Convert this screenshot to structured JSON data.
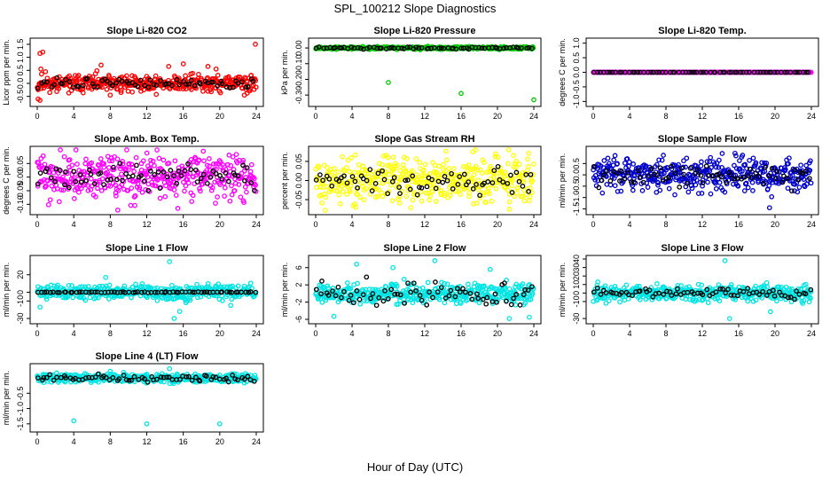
{
  "main_title": "SPL_100212  Slope Diagnostics",
  "x_axis_title": "Hour of Day (UTC)",
  "chart_data": [
    {
      "type": "scatter",
      "title": "Slope Li-820 CO2",
      "xlabel": "",
      "ylabel": "Licor ppm per min.",
      "xlim": [
        0,
        24
      ],
      "ylim": [
        -0.75,
        1.6
      ],
      "xticks": [
        "0",
        "4",
        "8",
        "12",
        "16",
        "20",
        "24"
      ],
      "yticks": [
        {
          "v": -0.5,
          "t": "-0.5"
        },
        {
          "v": 0,
          "t": "0.0"
        },
        {
          "v": 0.5,
          "t": "0.5"
        },
        {
          "v": 1,
          "t": "1.0"
        },
        {
          "v": 1.5,
          "t": "1.5"
        }
      ],
      "colors": {
        "main": "#ff0000",
        "hourly": "#000000"
      },
      "series": [
        {
          "color": "#ff0000",
          "center": 0.0,
          "spread": 0.16,
          "n": 420,
          "seed": 11
        },
        {
          "color": "#000000",
          "center": 0.0,
          "spread": 0.1,
          "n": 70,
          "seed": 12
        }
      ],
      "outliers": [
        {
          "x": 0.3,
          "y": 1.15
        },
        {
          "x": 0.6,
          "y": 1.2
        },
        {
          "x": 0.4,
          "y": 0.55
        },
        {
          "x": 0.9,
          "y": 0.45
        },
        {
          "x": 7.0,
          "y": 0.7
        },
        {
          "x": 14.4,
          "y": 0.65
        },
        {
          "x": 16.0,
          "y": 0.75
        },
        {
          "x": 18.7,
          "y": 0.65
        },
        {
          "x": 19.6,
          "y": 0.55
        },
        {
          "x": 23.9,
          "y": 1.5
        },
        {
          "x": 0.1,
          "y": -0.6
        },
        {
          "x": 0.3,
          "y": -0.65
        },
        {
          "x": 8.0,
          "y": -0.45
        },
        {
          "x": 18.7,
          "y": -0.3
        },
        {
          "x": 22.7,
          "y": -0.45
        }
      ]
    },
    {
      "type": "scatter",
      "title": "Slope Li-820 Pressure",
      "xlabel": "",
      "ylabel": "kPa per min.",
      "xlim": [
        0,
        24
      ],
      "ylim": [
        -0.35,
        0.04
      ],
      "xticks": [
        "0",
        "4",
        "8",
        "12",
        "16",
        "20",
        "24"
      ],
      "yticks": [
        {
          "v": 0,
          "t": "0.00"
        },
        {
          "v": -0.1,
          "t": "-0.10"
        },
        {
          "v": -0.2,
          "t": "-0.20"
        },
        {
          "v": -0.3,
          "t": "-0.30"
        }
      ],
      "colors": {
        "main": "#00cc00",
        "hourly": "#000000"
      },
      "series": [
        {
          "color": "#00cc00",
          "center": 0.0,
          "spread": 0.004,
          "n": 420,
          "seed": 21
        },
        {
          "color": "#000000",
          "center": 0.0,
          "spread": 0.003,
          "n": 70,
          "seed": 22
        }
      ],
      "outliers": [
        {
          "x": 8.0,
          "y": -0.22
        },
        {
          "x": 16.0,
          "y": -0.29
        },
        {
          "x": 24.0,
          "y": -0.33
        }
      ]
    },
    {
      "type": "scatter",
      "title": "Slope Li-820 Temp.",
      "xlabel": "",
      "ylabel": "degrees C per min.",
      "xlim": [
        0,
        24
      ],
      "ylim": [
        -1.05,
        1.05
      ],
      "xticks": [
        "0",
        "4",
        "8",
        "12",
        "16",
        "20",
        "24"
      ],
      "yticks": [
        {
          "v": -1,
          "t": "-1.0"
        },
        {
          "v": -0.5,
          "t": "-0.5"
        },
        {
          "v": 0,
          "t": "0.0"
        },
        {
          "v": 0.5,
          "t": "0.5"
        },
        {
          "v": 1,
          "t": "1.0"
        }
      ],
      "colors": {
        "main": "#ff00ff",
        "hourly": "#000000"
      },
      "series": [
        {
          "color": "#ff00ff",
          "center": 0.0,
          "spread": 0.0,
          "n": 420,
          "seed": 31
        },
        {
          "color": "#000000",
          "center": 0.0,
          "spread": 0.0,
          "n": 70,
          "seed": 32
        }
      ],
      "outliers": []
    },
    {
      "type": "scatter",
      "title": "Slope Amb. Box Temp.",
      "xlabel": "",
      "ylabel": "degrees C per min.",
      "xlim": [
        0,
        24
      ],
      "ylim": [
        -0.125,
        0.1
      ],
      "xticks": [
        "0",
        "4",
        "8",
        "12",
        "16",
        "20",
        "24"
      ],
      "yticks": [
        {
          "v": -0.1,
          "t": "-0.10"
        },
        {
          "v": -0.05,
          "t": "-0.05"
        },
        {
          "v": 0,
          "t": "0.00"
        },
        {
          "v": 0.05,
          "t": "0.05"
        }
      ],
      "colors": {
        "main": "#ff00ff",
        "hourly": "#000000"
      },
      "series": [
        {
          "color": "#ff00ff",
          "center": 0.0,
          "spread": 0.04,
          "n": 420,
          "seed": 41
        },
        {
          "color": "#000000",
          "center": 0.0,
          "spread": 0.02,
          "n": 70,
          "seed": 42
        }
      ],
      "outliers": [
        {
          "x": 15.4,
          "y": -0.115
        },
        {
          "x": 18.2,
          "y": 0.095
        }
      ]
    },
    {
      "type": "scatter",
      "title": "Slope Gas Stream RH",
      "xlabel": "",
      "ylabel": "percent per min.",
      "xlim": [
        0,
        24
      ],
      "ylim": [
        -0.08,
        0.08
      ],
      "xticks": [
        "0",
        "4",
        "8",
        "12",
        "16",
        "20",
        "24"
      ],
      "yticks": [
        {
          "v": -0.05,
          "t": "-0.05"
        },
        {
          "v": 0,
          "t": "0.00"
        },
        {
          "v": 0.05,
          "t": "0.05"
        }
      ],
      "colors": {
        "main": "#ffff00",
        "hourly": "#000000"
      },
      "series": [
        {
          "color": "#ffff00",
          "center": 0.0,
          "spread": 0.03,
          "n": 420,
          "seed": 51
        },
        {
          "color": "#000000",
          "center": 0.0,
          "spread": 0.015,
          "n": 70,
          "seed": 52
        }
      ],
      "outliers": [
        {
          "x": 4.4,
          "y": -0.07
        },
        {
          "x": 17.3,
          "y": 0.075
        },
        {
          "x": 21.3,
          "y": -0.075
        }
      ]
    },
    {
      "type": "scatter",
      "title": "Slope Sample Flow",
      "xlabel": "",
      "ylabel": "ml/min per min.",
      "xlim": [
        0,
        24
      ],
      "ylim": [
        -1.6,
        1.1
      ],
      "xticks": [
        "0",
        "4",
        "8",
        "12",
        "16",
        "20",
        "24"
      ],
      "yticks": [
        {
          "v": -1.5,
          "t": "-1.5"
        },
        {
          "v": -1,
          "t": "-1.0"
        },
        {
          "v": -0.5,
          "t": "-0.5"
        },
        {
          "v": 0,
          "t": "0.0"
        },
        {
          "v": 0.5,
          "t": "0.5"
        }
      ],
      "colors": {
        "main": "#0000cc",
        "hourly": "#000000"
      },
      "series": [
        {
          "color": "#0000cc",
          "center": 0.0,
          "spread": 0.35,
          "n": 420,
          "seed": 61
        },
        {
          "color": "#000000",
          "center": 0.0,
          "spread": 0.25,
          "n": 70,
          "seed": 62
        }
      ],
      "outliers": [
        {
          "x": 19.4,
          "y": -1.45
        },
        {
          "x": 1.0,
          "y": -0.8
        },
        {
          "x": 2.4,
          "y": 0.85
        },
        {
          "x": 15.6,
          "y": 0.95
        }
      ]
    },
    {
      "type": "scatter",
      "title": "Slope Line 1 Flow",
      "xlabel": "",
      "ylabel": "ml/min per min.",
      "xlim": [
        0,
        24
      ],
      "ylim": [
        -32,
        38
      ],
      "xticks": [
        "0",
        "4",
        "8",
        "12",
        "16",
        "20",
        "24"
      ],
      "yticks": [
        {
          "v": -30,
          "t": "-30"
        },
        {
          "v": -10,
          "t": "-10"
        },
        {
          "v": 0,
          "t": "0"
        },
        {
          "v": 20,
          "t": "20"
        }
      ],
      "colors": {
        "main": "#00e5e5",
        "hourly": "#000000"
      },
      "series": [
        {
          "color": "#00e5e5",
          "center": 0.0,
          "spread": 4,
          "n": 420,
          "seed": 71
        },
        {
          "color": "#000000",
          "center": 0.0,
          "spread": 0.3,
          "n": 70,
          "seed": 72
        }
      ],
      "outliers": [
        {
          "x": 14.5,
          "y": 35
        },
        {
          "x": 15.0,
          "y": -30
        },
        {
          "x": 15.6,
          "y": -22
        },
        {
          "x": 16.3,
          "y": -12
        },
        {
          "x": 0.3,
          "y": -17
        },
        {
          "x": 21.2,
          "y": -15
        },
        {
          "x": 7.5,
          "y": 17
        }
      ]
    },
    {
      "type": "scatter",
      "title": "Slope Line 2 Flow",
      "xlabel": "",
      "ylabel": "ml/min per min.",
      "xlim": [
        0,
        24
      ],
      "ylim": [
        -6.2,
        8
      ],
      "xticks": [
        "0",
        "4",
        "8",
        "12",
        "16",
        "20",
        "24"
      ],
      "yticks": [
        {
          "v": -6,
          "t": "-6"
        },
        {
          "v": -2,
          "t": "-2"
        },
        {
          "v": 2,
          "t": "2"
        },
        {
          "v": 6,
          "t": "6"
        }
      ],
      "colors": {
        "main": "#00e5e5",
        "hourly": "#000000"
      },
      "series": [
        {
          "color": "#00e5e5",
          "center": 0.0,
          "spread": 1.2,
          "n": 420,
          "seed": 81
        },
        {
          "color": "#000000",
          "center": 0.0,
          "spread": 1.3,
          "n": 70,
          "seed": 82
        }
      ],
      "outliers": [
        {
          "x": 21.3,
          "y": -5.8
        },
        {
          "x": 23.5,
          "y": -5.5
        },
        {
          "x": 13.1,
          "y": 7.6
        },
        {
          "x": 4.5,
          "y": 6.8
        },
        {
          "x": 8.5,
          "y": 6.0
        },
        {
          "x": 19.2,
          "y": 5.6
        },
        {
          "x": 2.0,
          "y": -5.3
        }
      ]
    },
    {
      "type": "scatter",
      "title": "Slope Line 3 Flow",
      "xlabel": "",
      "ylabel": "ml/min per min.",
      "xlim": [
        0,
        24
      ],
      "ylim": [
        -32,
        40
      ],
      "xticks": [
        "0",
        "4",
        "8",
        "12",
        "16",
        "20",
        "24"
      ],
      "yticks": [
        {
          "v": -30,
          "t": "-30"
        },
        {
          "v": -10,
          "t": "-10"
        },
        {
          "v": 0,
          "t": "0"
        },
        {
          "v": 10,
          "t": "10"
        },
        {
          "v": 20,
          "t": "20"
        },
        {
          "v": 30,
          "t": "30"
        },
        {
          "v": 40,
          "t": "40"
        }
      ],
      "colors": {
        "main": "#00e5e5",
        "hourly": "#000000"
      },
      "series": [
        {
          "color": "#00e5e5",
          "center": 0.0,
          "spread": 4.5,
          "n": 420,
          "seed": 91
        },
        {
          "color": "#000000",
          "center": 0.0,
          "spread": 3,
          "n": 70,
          "seed": 92
        }
      ],
      "outliers": [
        {
          "x": 14.5,
          "y": 38
        },
        {
          "x": 15.0,
          "y": -30
        },
        {
          "x": 0.5,
          "y": 13
        },
        {
          "x": 19.5,
          "y": -22
        }
      ]
    },
    {
      "type": "scatter",
      "title": "Slope Line 4 (LT) Flow",
      "xlabel": "",
      "ylabel": "ml/min per min.",
      "xlim": [
        0,
        24
      ],
      "ylim": [
        -1.65,
        0.35
      ],
      "xticks": [
        "0",
        "4",
        "8",
        "12",
        "16",
        "20",
        "24"
      ],
      "yticks": [
        {
          "v": -1.5,
          "t": "-1.5"
        },
        {
          "v": -1,
          "t": "-1.0"
        },
        {
          "v": -0.5,
          "t": "-0.5"
        }
      ],
      "colors": {
        "main": "#00e5e5",
        "hourly": "#000000"
      },
      "series": [
        {
          "color": "#00e5e5",
          "center": 0.0,
          "spread": 0.07,
          "n": 420,
          "seed": 101
        },
        {
          "color": "#000000",
          "center": 0.0,
          "spread": 0.05,
          "n": 70,
          "seed": 102
        }
      ],
      "outliers": [
        {
          "x": 4.0,
          "y": -1.4
        },
        {
          "x": 12.0,
          "y": -1.5
        },
        {
          "x": 20.0,
          "y": -1.5
        },
        {
          "x": 14.5,
          "y": 0.3
        },
        {
          "x": 8.0,
          "y": 0.22
        }
      ]
    }
  ]
}
